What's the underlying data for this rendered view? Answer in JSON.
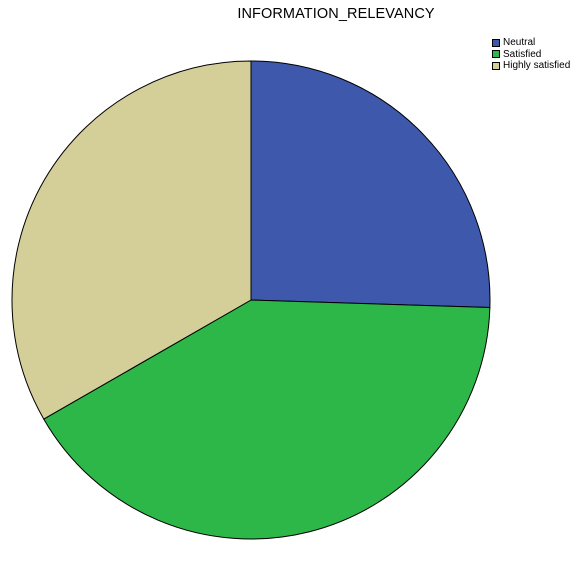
{
  "chart_data": {
    "type": "pie",
    "title": "INFORMATION_RELEVANCY",
    "categories": [
      "Neutral",
      "Satisfied",
      "Highly satisfied"
    ],
    "values": [
      25.5,
      41.2,
      33.3
    ],
    "colors": [
      "#3E58AC",
      "#2DB749",
      "#D4CE99"
    ],
    "start_angle_deg": 0,
    "direction": "clockwise",
    "legend_position": "top-right"
  }
}
